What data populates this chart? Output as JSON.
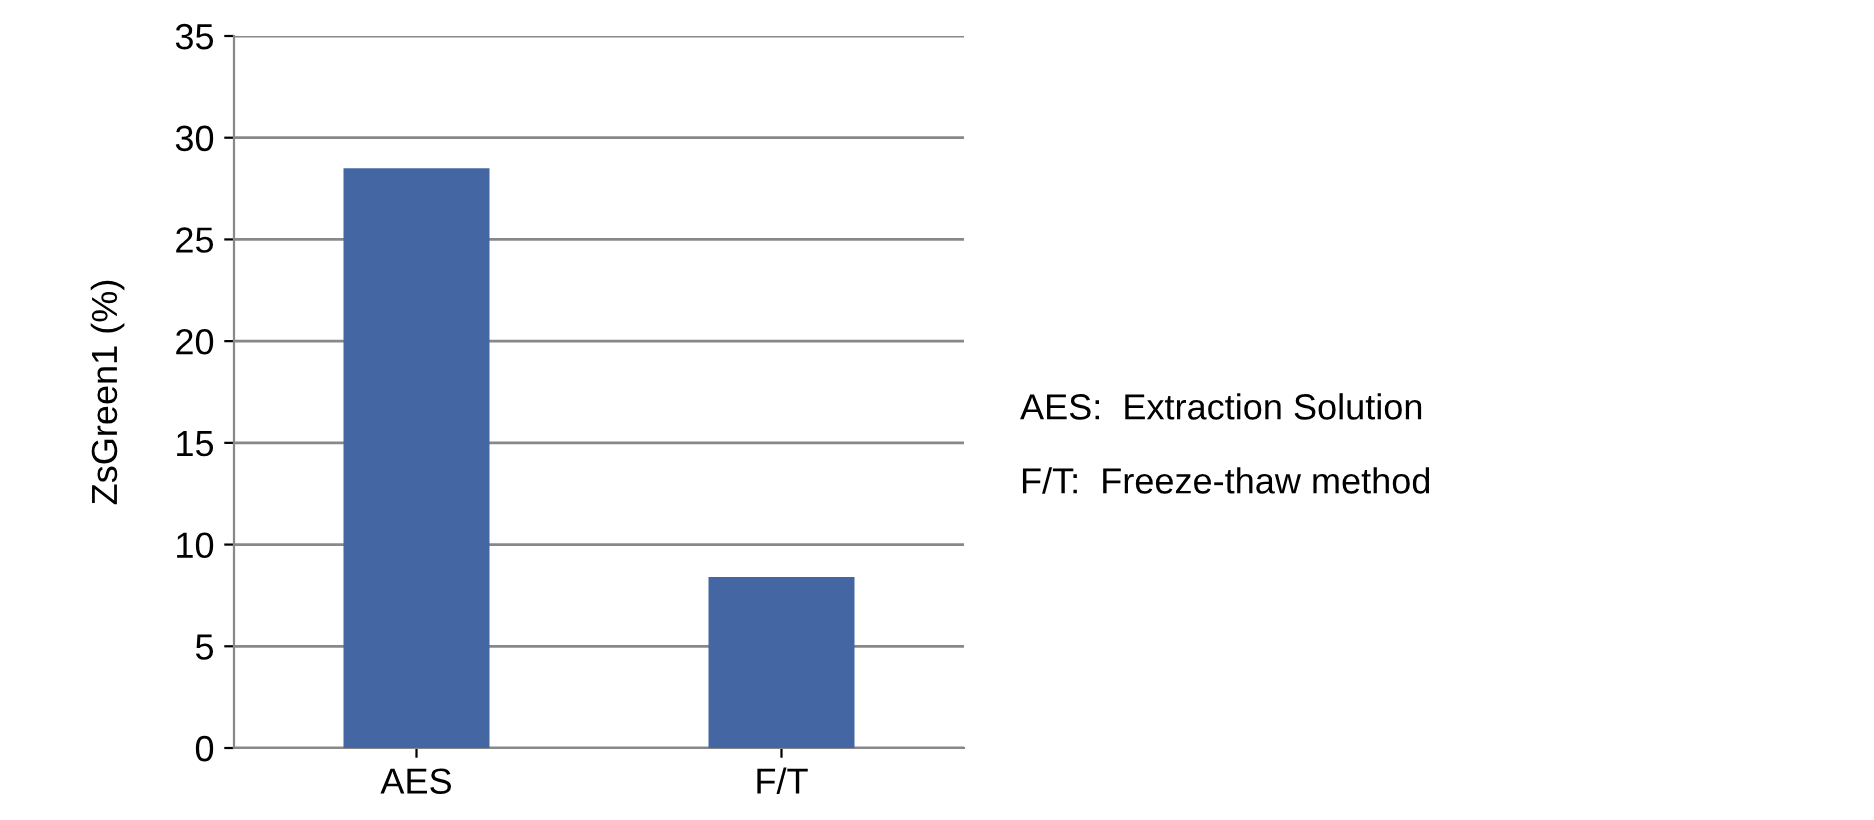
{
  "chart_data": {
    "type": "bar",
    "ylabel": "ZsGreen1 (%)",
    "categories": [
      "AES",
      "F/T"
    ],
    "values": [
      28.5,
      8.4
    ],
    "color": "#4467a3",
    "ylim": [
      0,
      35
    ],
    "yticks": [
      0,
      5,
      10,
      15,
      20,
      25,
      30,
      35
    ],
    "grid": "y",
    "annotations": [
      "AES:  Extraction Solution",
      "F/T:  Freeze-thaw method"
    ]
  }
}
